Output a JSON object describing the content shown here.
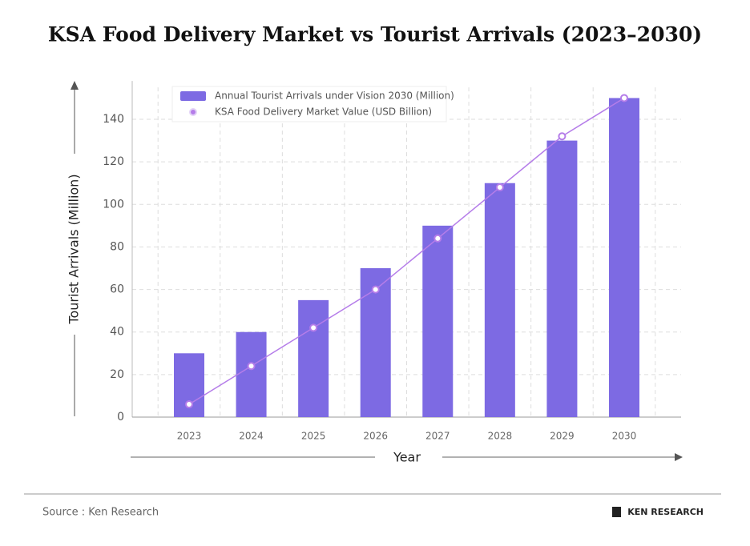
{
  "chart_data": {
    "type": "bar-line",
    "title": "KSA Food Delivery Market vs Tourist Arrivals (2023–2030)",
    "x_label": "Year",
    "y_label": "Tourist Arrivals (Million)",
    "categories": [
      "2023",
      "2024",
      "2025",
      "2026",
      "2027",
      "2028",
      "2029",
      "2030"
    ],
    "series": [
      {
        "name": "Annual Tourist Arrivals under Vision 2030 (Million)",
        "type": "bar",
        "color": "#7d6ae3",
        "values": [
          30,
          40,
          55,
          70,
          90,
          110,
          130,
          150
        ]
      },
      {
        "name": "KSA Food Delivery Market Value (USD Billion)",
        "type": "line",
        "color": "#b57de9",
        "values": [
          6,
          24,
          42,
          60,
          84,
          108,
          132,
          150
        ]
      }
    ],
    "ylim": [
      0,
      155
    ],
    "yticks": [
      0,
      20,
      40,
      60,
      80,
      100,
      120,
      140
    ],
    "grid": true,
    "legend": "top-left"
  },
  "footer": {
    "source": "Source : Ken Research",
    "brand": "KEN RESEARCH"
  }
}
